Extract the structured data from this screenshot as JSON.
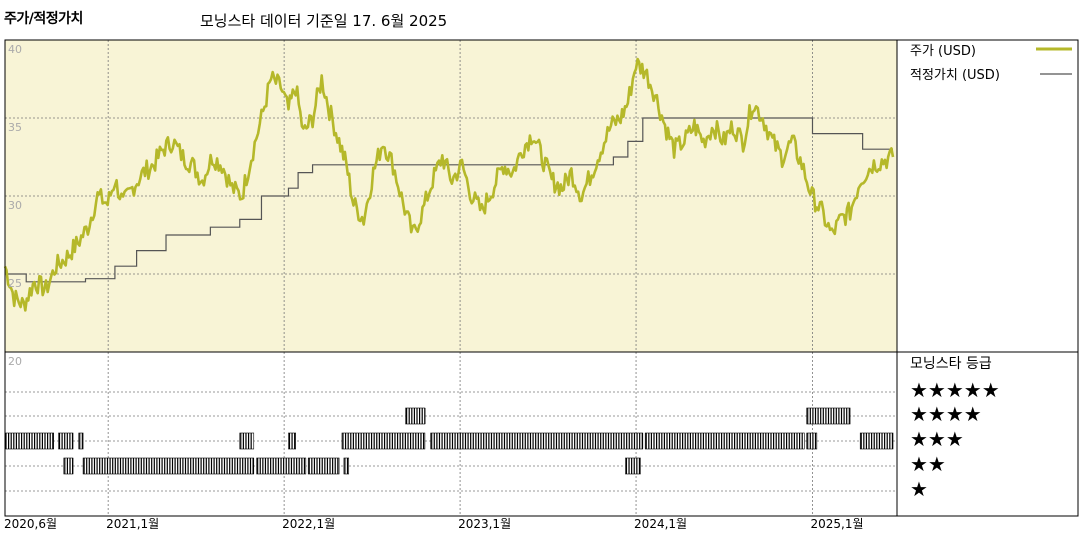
{
  "header": {
    "title": "주가/적정가치",
    "subtitle": "모닝스타 데이터 기준일 17. 6월 2025"
  },
  "colors": {
    "price": "#b5b82a",
    "fair_value": "#555555",
    "plot_bg": "#f8f4d6",
    "band_bg": "#f8f4d6"
  },
  "legend": {
    "price_label": "주가 (USD)",
    "fair_value_label": "적정가치 (USD)",
    "rating_title": "모닝스타 등급",
    "stars": [
      "★★★★★",
      "★★★★",
      "★★★",
      "★★",
      "★"
    ]
  },
  "chart_data": [
    {
      "type": "line",
      "ylim": [
        20,
        40
      ],
      "yticks": [
        "40",
        "35",
        "30",
        "25",
        "20"
      ],
      "xlim": [
        "2020-06-01",
        "2025-06-17"
      ],
      "x_tick_labels": [
        "2020,6월",
        "2021,1월",
        "2022,1월",
        "2023,1월",
        "2024,1월",
        "2025,1월"
      ],
      "x_tick_dates": [
        "2020-06-01",
        "2021-01-01",
        "2022-01-01",
        "2023-01-01",
        "2024-01-01",
        "2025-01-01"
      ],
      "grid": true,
      "legend_position": "right",
      "series": [
        {
          "name": "주가 (USD)",
          "points": [
            [
              "2020-06-01",
              25.5
            ],
            [
              "2020-06-20",
              23.5
            ],
            [
              "2020-07-10",
              23.0
            ],
            [
              "2020-08-01",
              24.5
            ],
            [
              "2020-08-25",
              24.0
            ],
            [
              "2020-09-15",
              25.5
            ],
            [
              "2020-10-05",
              26.0
            ],
            [
              "2020-10-30",
              27.0
            ],
            [
              "2020-11-20",
              28.0
            ],
            [
              "2020-12-10",
              30.0
            ],
            [
              "2020-12-31",
              29.5
            ],
            [
              "2021-01-15",
              31.0
            ],
            [
              "2021-02-01",
              29.5
            ],
            [
              "2021-02-20",
              30.5
            ],
            [
              "2021-03-15",
              31.5
            ],
            [
              "2021-04-05",
              32.0
            ],
            [
              "2021-04-25",
              33.0
            ],
            [
              "2021-05-15",
              33.5
            ],
            [
              "2021-06-05",
              32.5
            ],
            [
              "2021-06-25",
              32.0
            ],
            [
              "2021-07-15",
              31.0
            ],
            [
              "2021-08-05",
              32.5
            ],
            [
              "2021-08-25",
              32.0
            ],
            [
              "2021-09-15",
              30.5
            ],
            [
              "2021-10-05",
              30.0
            ],
            [
              "2021-10-25",
              32.5
            ],
            [
              "2021-11-15",
              35.0
            ],
            [
              "2021-12-05",
              37.5
            ],
            [
              "2021-12-25",
              37.0
            ],
            [
              "2022-01-10",
              35.5
            ],
            [
              "2022-01-25",
              37.0
            ],
            [
              "2022-02-10",
              34.0
            ],
            [
              "2022-03-01",
              35.0
            ],
            [
              "2022-03-20",
              37.5
            ],
            [
              "2022-04-05",
              35.5
            ],
            [
              "2022-04-25",
              33.5
            ],
            [
              "2022-05-10",
              32.0
            ],
            [
              "2022-05-25",
              29.5
            ],
            [
              "2022-06-15",
              28.5
            ],
            [
              "2022-07-05",
              31.5
            ],
            [
              "2022-07-25",
              33.5
            ],
            [
              "2022-08-15",
              32.0
            ],
            [
              "2022-09-05",
              29.5
            ],
            [
              "2022-09-25",
              27.5
            ],
            [
              "2022-10-15",
              29.0
            ],
            [
              "2022-11-05",
              31.0
            ],
            [
              "2022-11-25",
              32.5
            ],
            [
              "2022-12-15",
              31.0
            ],
            [
              "2023-01-05",
              32.0
            ],
            [
              "2023-01-25",
              30.0
            ],
            [
              "2023-02-15",
              29.0
            ],
            [
              "2023-03-10",
              30.5
            ],
            [
              "2023-04-01",
              32.0
            ],
            [
              "2023-04-20",
              31.5
            ],
            [
              "2023-05-10",
              33.0
            ],
            [
              "2023-06-01",
              34.0
            ],
            [
              "2023-06-20",
              32.5
            ],
            [
              "2023-07-10",
              31.0
            ],
            [
              "2023-08-01",
              30.5
            ],
            [
              "2023-08-20",
              31.5
            ],
            [
              "2023-09-10",
              30.0
            ],
            [
              "2023-10-01",
              31.5
            ],
            [
              "2023-10-20",
              33.0
            ],
            [
              "2023-11-10",
              34.5
            ],
            [
              "2023-11-30",
              35.0
            ],
            [
              "2023-12-15",
              36.0
            ],
            [
              "2024-01-01",
              38.5
            ],
            [
              "2024-01-20",
              38.0
            ],
            [
              "2024-02-10",
              36.5
            ],
            [
              "2024-03-01",
              34.5
            ],
            [
              "2024-03-20",
              33.0
            ],
            [
              "2024-04-10",
              33.5
            ],
            [
              "2024-05-01",
              34.5
            ],
            [
              "2024-05-20",
              33.5
            ],
            [
              "2024-06-10",
              34.5
            ],
            [
              "2024-07-01",
              33.5
            ],
            [
              "2024-07-20",
              34.5
            ],
            [
              "2024-08-10",
              33.5
            ],
            [
              "2024-08-30",
              36.0
            ],
            [
              "2024-09-20",
              35.0
            ],
            [
              "2024-10-10",
              33.5
            ],
            [
              "2024-10-30",
              32.5
            ],
            [
              "2024-11-20",
              33.5
            ],
            [
              "2024-12-10",
              32.0
            ],
            [
              "2024-12-31",
              30.0
            ],
            [
              "2025-01-20",
              29.0
            ],
            [
              "2025-02-10",
              27.5
            ],
            [
              "2025-03-01",
              28.5
            ],
            [
              "2025-03-20",
              29.0
            ],
            [
              "2025-04-10",
              31.0
            ],
            [
              "2025-05-05",
              32.0
            ],
            [
              "2025-06-17",
              32.5
            ]
          ]
        },
        {
          "name": "적정가치 (USD)",
          "step": true,
          "points": [
            [
              "2020-06-01",
              25.0
            ],
            [
              "2020-07-15",
              24.5
            ],
            [
              "2020-11-15",
              24.7
            ],
            [
              "2021-01-15",
              25.5
            ],
            [
              "2021-03-01",
              26.5
            ],
            [
              "2021-05-01",
              27.5
            ],
            [
              "2021-08-01",
              28.0
            ],
            [
              "2021-10-01",
              28.5
            ],
            [
              "2021-11-15",
              30.0
            ],
            [
              "2022-01-10",
              30.5
            ],
            [
              "2022-01-30",
              31.5
            ],
            [
              "2022-03-01",
              32.0
            ],
            [
              "2023-11-15",
              32.5
            ],
            [
              "2023-12-15",
              33.5
            ],
            [
              "2024-01-15",
              35.0
            ],
            [
              "2025-01-01",
              34.0
            ],
            [
              "2025-04-15",
              33.0
            ],
            [
              "2025-06-17",
              33.0
            ]
          ]
        }
      ]
    },
    {
      "type": "heatmap",
      "title": "모닝스타 등급",
      "rows": [
        5,
        4,
        3,
        2,
        1
      ],
      "segments": [
        {
          "stars": 3,
          "from": "2020-06-01",
          "to": "2020-09-10"
        },
        {
          "stars": 3,
          "from": "2020-09-20",
          "to": "2020-10-20"
        },
        {
          "stars": 3,
          "from": "2020-11-01",
          "to": "2020-11-10"
        },
        {
          "stars": 2,
          "from": "2020-10-01",
          "to": "2020-10-20"
        },
        {
          "stars": 2,
          "from": "2020-11-10",
          "to": "2021-10-30"
        },
        {
          "stars": 3,
          "from": "2021-10-01",
          "to": "2021-10-30"
        },
        {
          "stars": 2,
          "from": "2021-11-05",
          "to": "2022-02-15"
        },
        {
          "stars": 3,
          "from": "2022-01-10",
          "to": "2022-01-25"
        },
        {
          "stars": 2,
          "from": "2022-02-20",
          "to": "2022-04-25"
        },
        {
          "stars": 2,
          "from": "2022-05-05",
          "to": "2022-05-15"
        },
        {
          "stars": 3,
          "from": "2022-05-01",
          "to": "2022-10-20"
        },
        {
          "stars": 4,
          "from": "2022-09-10",
          "to": "2022-10-20"
        },
        {
          "stars": 3,
          "from": "2022-11-01",
          "to": "2024-01-15"
        },
        {
          "stars": 2,
          "from": "2023-12-10",
          "to": "2024-01-10"
        },
        {
          "stars": 3,
          "from": "2024-01-20",
          "to": "2024-12-15"
        },
        {
          "stars": 4,
          "from": "2024-12-20",
          "to": "2025-03-20"
        },
        {
          "stars": 3,
          "from": "2024-12-20",
          "to": "2025-01-10"
        },
        {
          "stars": 3,
          "from": "2025-04-10",
          "to": "2025-06-17"
        }
      ]
    }
  ]
}
